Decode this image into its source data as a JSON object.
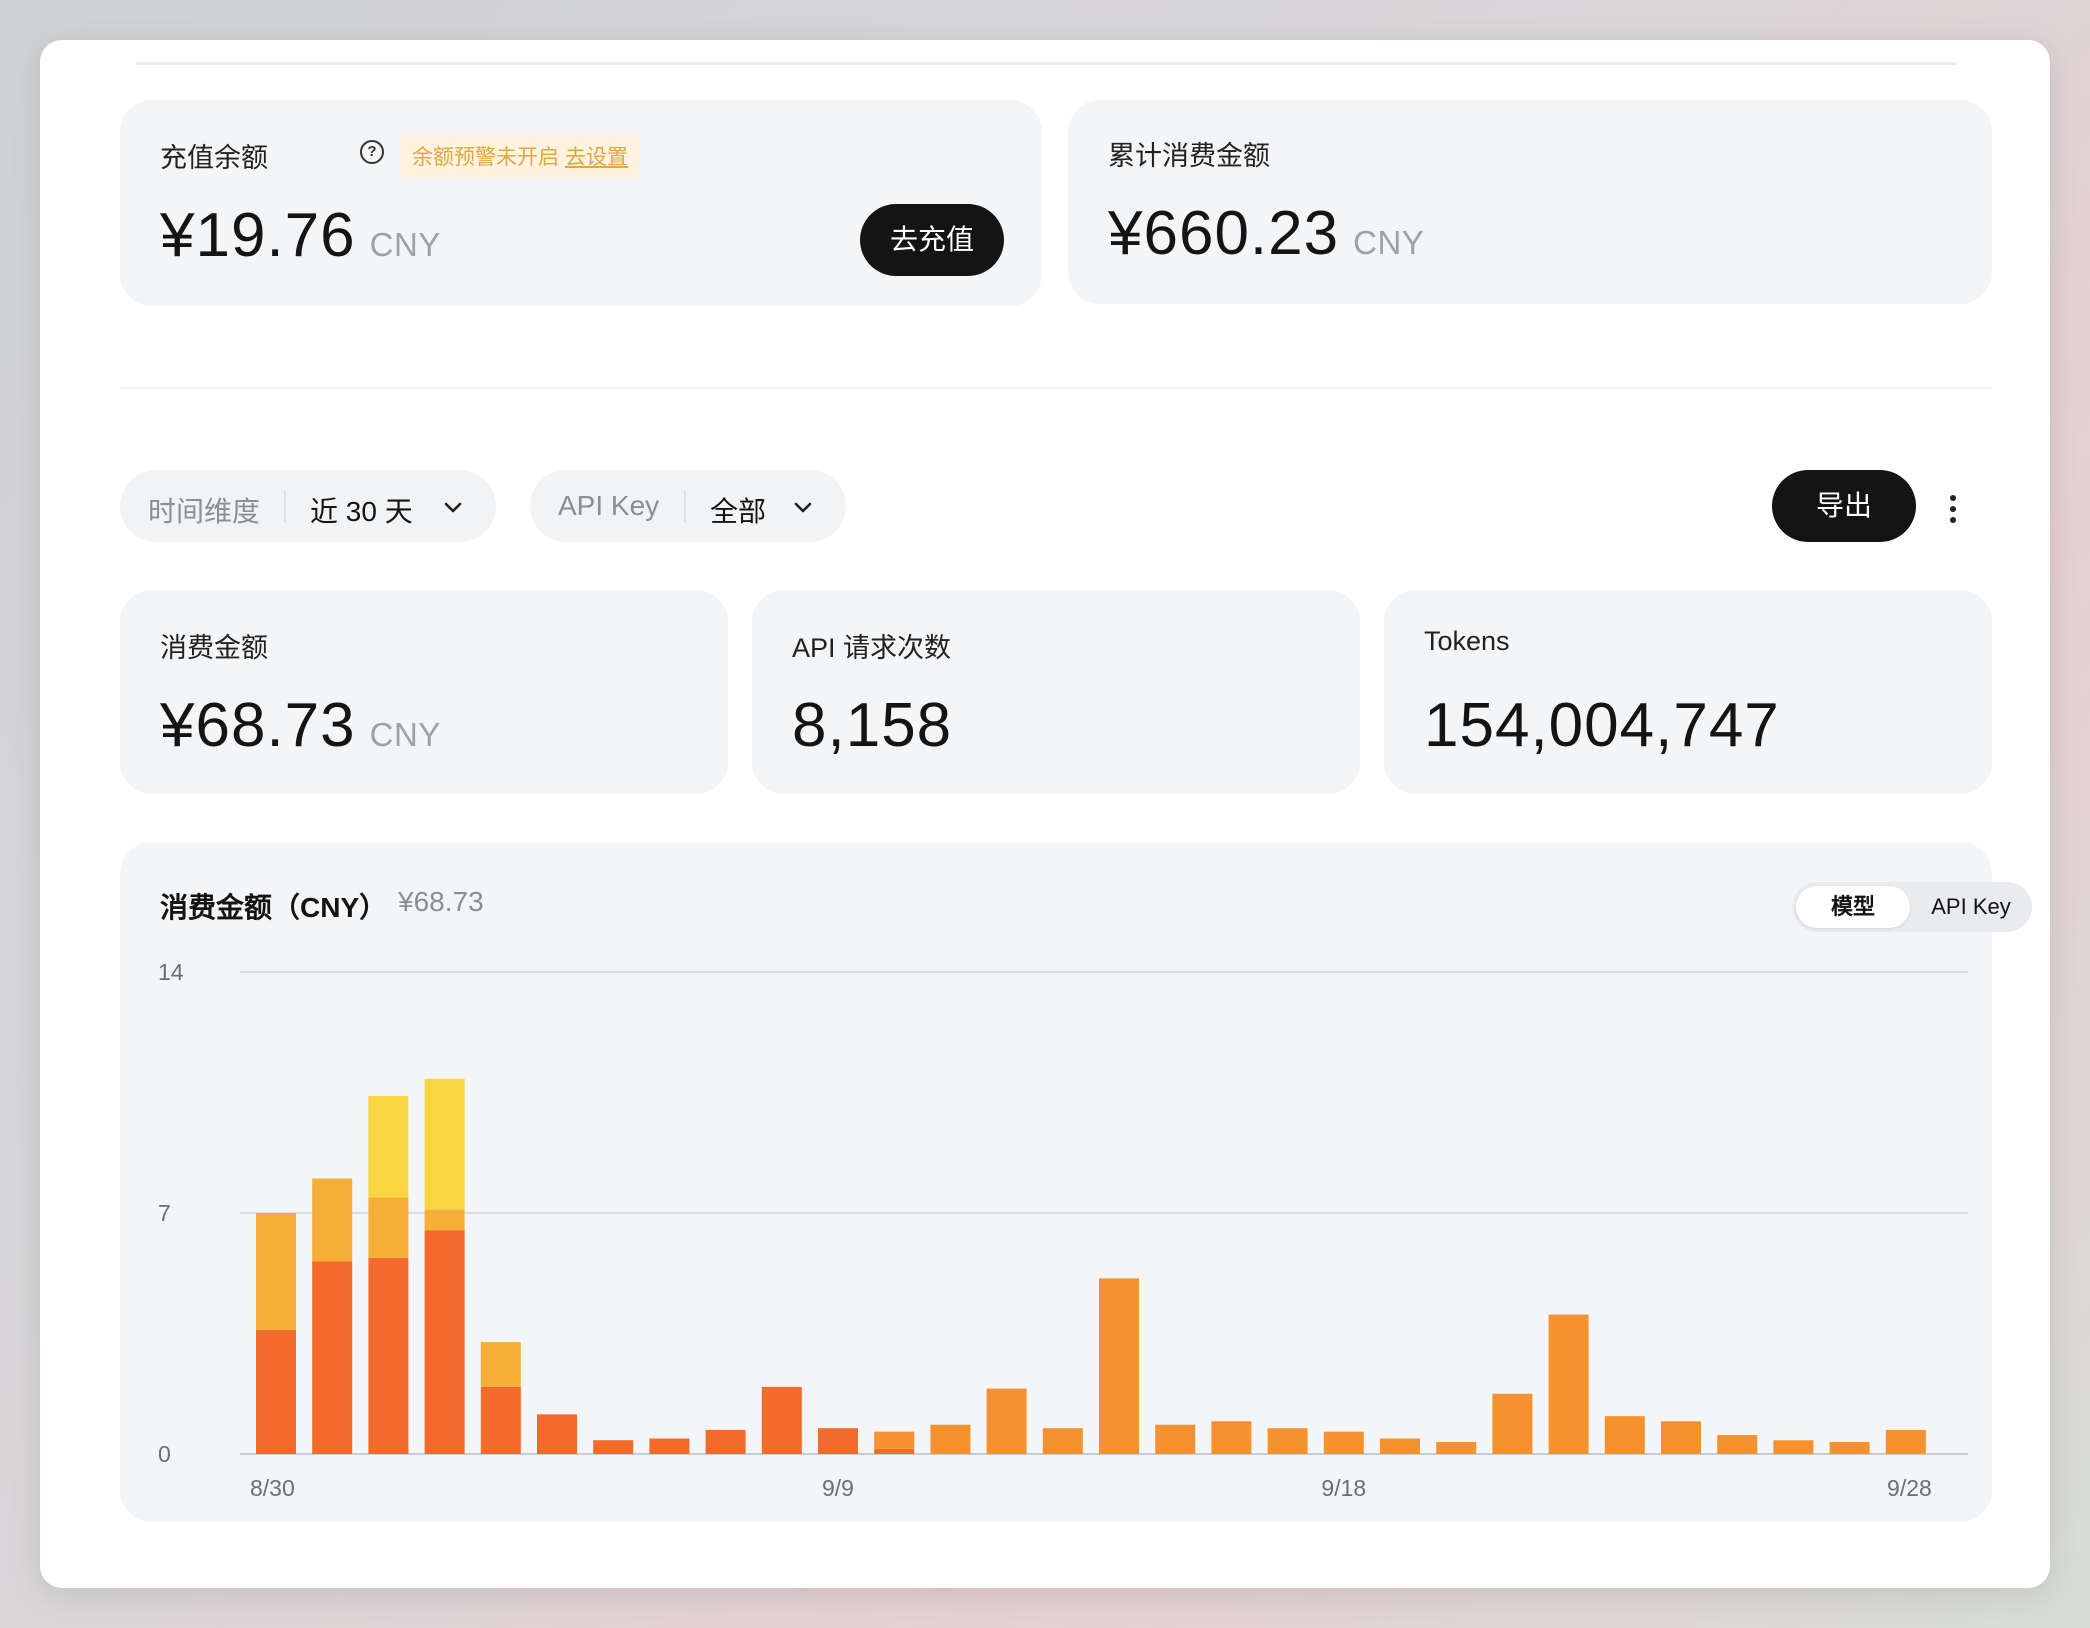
{
  "balance": {
    "label": "充值余额",
    "warning_text": "余额预警未开启",
    "warning_link": "去设置",
    "amount": "¥19.76",
    "unit": "CNY",
    "recharge_button": "去充值"
  },
  "total_spend": {
    "label": "累计消费金额",
    "amount": "¥660.23",
    "unit": "CNY"
  },
  "filters": {
    "time_label": "时间维度",
    "time_value": "近 30 天",
    "key_label": "API Key",
    "key_value": "全部",
    "export_button": "导出"
  },
  "stats": {
    "spend": {
      "label": "消费金额",
      "amount": "¥68.73",
      "unit": "CNY"
    },
    "requests": {
      "label": "API 请求次数",
      "value": "8,158"
    },
    "tokens": {
      "label": "Tokens",
      "value": "154,004,747"
    }
  },
  "chart_card": {
    "title": "消费金额（CNY）",
    "total": "¥68.73",
    "toggle": [
      "模型",
      "API Key"
    ],
    "active_toggle": "模型"
  },
  "colors": {
    "series_red": "#f26a2c",
    "series_amber": "#f5ae38",
    "series_yellow": "#f9d641",
    "series_orange": "#f3922f"
  },
  "chart_data": {
    "type": "bar",
    "stacked": true,
    "y_ticks": [
      0,
      7,
      14
    ],
    "ylim": [
      0,
      14
    ],
    "x_tick_labels": [
      {
        "label": "8/30",
        "index": 0
      },
      {
        "label": "9/9",
        "index": 10
      },
      {
        "label": "9/18",
        "index": 19
      },
      {
        "label": "9/28",
        "index": 29
      }
    ],
    "categories": [
      "8/30",
      "8/31",
      "9/1",
      "9/2",
      "9/3",
      "9/4",
      "9/5",
      "9/6",
      "9/7",
      "9/8",
      "9/9",
      "9/10",
      "9/11",
      "9/12",
      "9/13",
      "9/14",
      "9/15",
      "9/16",
      "9/17",
      "9/18",
      "9/19",
      "9/20",
      "9/21",
      "9/22",
      "9/23",
      "9/24",
      "9/25",
      "9/26",
      "9/27",
      "9/28"
    ],
    "series": [
      {
        "color": "#f26a2c",
        "values": [
          3.6,
          5.6,
          5.7,
          6.5,
          1.95,
          1.15,
          0.4,
          0.45,
          0.7,
          1.95,
          0.75,
          0.15,
          0,
          0,
          0,
          0,
          0,
          0,
          0,
          0,
          0,
          0,
          0,
          0,
          0,
          0,
          0,
          0,
          0,
          0
        ]
      },
      {
        "color": "#f5ae38",
        "values": [
          3.4,
          2.4,
          1.75,
          0.6,
          1.3,
          0,
          0,
          0,
          0,
          0,
          0,
          0,
          0,
          0,
          0,
          0,
          0,
          0,
          0,
          0,
          0,
          0,
          0,
          0,
          0,
          0,
          0,
          0,
          0,
          0
        ]
      },
      {
        "color": "#f9d641",
        "values": [
          0,
          0,
          2.95,
          3.8,
          0,
          0,
          0,
          0,
          0,
          0,
          0,
          0,
          0,
          0,
          0,
          0,
          0,
          0,
          0,
          0,
          0,
          0,
          0,
          0,
          0,
          0,
          0,
          0,
          0,
          0
        ]
      },
      {
        "color": "#f3922f",
        "values": [
          0,
          0,
          0,
          0,
          0,
          0,
          0,
          0,
          0,
          0,
          0,
          0.5,
          0.85,
          1.9,
          0.75,
          5.1,
          0.85,
          0.95,
          0.75,
          0.65,
          0.45,
          0.35,
          1.75,
          4.05,
          1.1,
          0.95,
          0.55,
          0.4,
          0.35,
          0.7
        ]
      }
    ],
    "grid": true,
    "legend": "none"
  }
}
